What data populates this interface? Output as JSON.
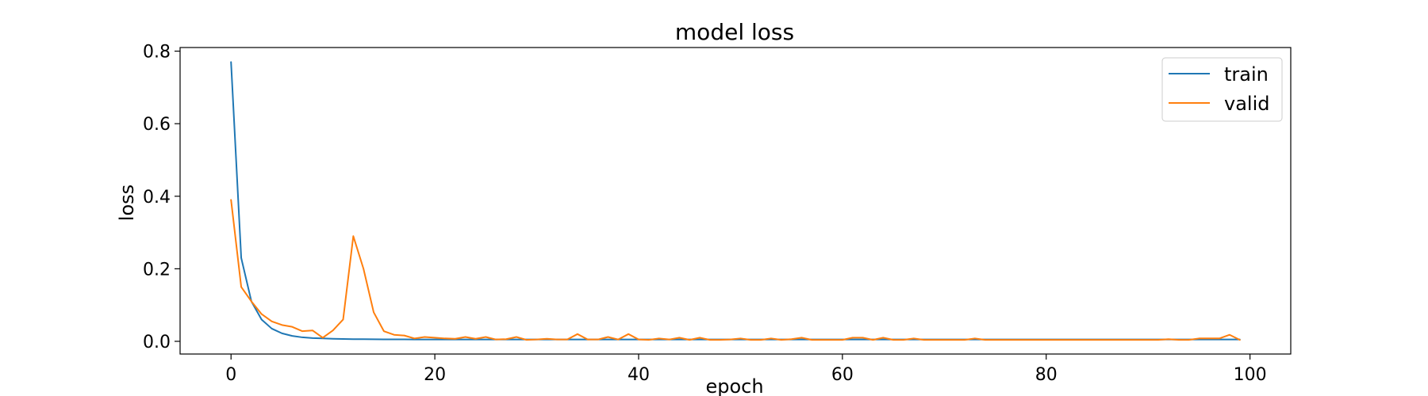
{
  "chart_data": {
    "type": "line",
    "title": "model loss",
    "xlabel": "epoch",
    "ylabel": "loss",
    "xlim": [
      -5,
      104
    ],
    "ylim": [
      -0.035,
      0.81
    ],
    "xticks": [
      "0",
      "20",
      "40",
      "60",
      "80",
      "100"
    ],
    "yticks": [
      "0.0",
      "0.2",
      "0.4",
      "0.6",
      "0.8"
    ],
    "grid": false,
    "legend_position": "top-right",
    "series": [
      {
        "name": "train",
        "color": "#1f77b4",
        "x_start": 0,
        "values": [
          0.77,
          0.23,
          0.11,
          0.06,
          0.035,
          0.022,
          0.015,
          0.011,
          0.009,
          0.008,
          0.007,
          0.0065,
          0.006,
          0.0058,
          0.0056,
          0.0055,
          0.0054,
          0.0053,
          0.0052,
          0.0051,
          0.005,
          0.005,
          0.005,
          0.005,
          0.005,
          0.005,
          0.005,
          0.005,
          0.005,
          0.005,
          0.005,
          0.005,
          0.005,
          0.005,
          0.005,
          0.005,
          0.005,
          0.005,
          0.005,
          0.005,
          0.005,
          0.005,
          0.005,
          0.005,
          0.005,
          0.005,
          0.005,
          0.005,
          0.005,
          0.005,
          0.005,
          0.005,
          0.005,
          0.005,
          0.005,
          0.005,
          0.005,
          0.005,
          0.005,
          0.005,
          0.005,
          0.005,
          0.005,
          0.005,
          0.005,
          0.005,
          0.005,
          0.005,
          0.005,
          0.005,
          0.005,
          0.005,
          0.005,
          0.005,
          0.005,
          0.005,
          0.005,
          0.005,
          0.005,
          0.005,
          0.005,
          0.005,
          0.005,
          0.005,
          0.005,
          0.005,
          0.005,
          0.005,
          0.005,
          0.005,
          0.005,
          0.005,
          0.005,
          0.005,
          0.005,
          0.005,
          0.005,
          0.005,
          0.005,
          0.005
        ]
      },
      {
        "name": "valid",
        "color": "#ff7f0e",
        "x_start": 0,
        "values": [
          0.39,
          0.15,
          0.11,
          0.075,
          0.055,
          0.045,
          0.04,
          0.028,
          0.03,
          0.01,
          0.03,
          0.06,
          0.29,
          0.2,
          0.08,
          0.028,
          0.018,
          0.016,
          0.008,
          0.012,
          0.01,
          0.008,
          0.007,
          0.012,
          0.007,
          0.012,
          0.005,
          0.006,
          0.012,
          0.004,
          0.005,
          0.007,
          0.005,
          0.005,
          0.02,
          0.005,
          0.005,
          0.012,
          0.005,
          0.02,
          0.005,
          0.004,
          0.008,
          0.005,
          0.01,
          0.004,
          0.01,
          0.004,
          0.004,
          0.005,
          0.008,
          0.004,
          0.004,
          0.008,
          0.004,
          0.006,
          0.01,
          0.004,
          0.004,
          0.004,
          0.004,
          0.01,
          0.01,
          0.004,
          0.01,
          0.004,
          0.004,
          0.008,
          0.004,
          0.004,
          0.004,
          0.004,
          0.004,
          0.008,
          0.004,
          0.004,
          0.004,
          0.004,
          0.004,
          0.004,
          0.004,
          0.004,
          0.004,
          0.004,
          0.004,
          0.004,
          0.004,
          0.004,
          0.004,
          0.004,
          0.004,
          0.004,
          0.006,
          0.004,
          0.004,
          0.008,
          0.008,
          0.008,
          0.018,
          0.004
        ]
      }
    ]
  }
}
